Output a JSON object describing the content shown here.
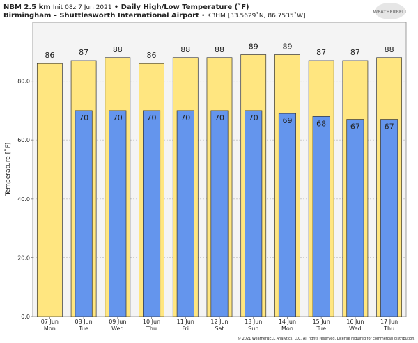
{
  "title_parts": [
    "NBM 2.5 km",
    "Init 08z 7 Jun 2021",
    "• Daily High/Low Temperature (˚F)"
  ],
  "subtitle_parts": [
    "Birmingham – Shuttlesworth International Airport",
    "• KBHM [33.5629˚N, 86.7535˚W]"
  ],
  "logo": "WEATHERBELL",
  "footer": "© 2021 WeatherBELL Analytics, LLC. All rights reserved. License required for commercial distribution.",
  "chart_data": {
    "type": "bar",
    "y_label": "Temperature [˚F]",
    "categories": [
      "07 Jun",
      "08 Jun",
      "09 Jun",
      "10 Jun",
      "11 Jun",
      "12 Jun",
      "13 Jun",
      "14 Jun",
      "15 Jun",
      "16 Jun",
      "17 Jun"
    ],
    "weekdays": [
      "Mon",
      "Tue",
      "Wed",
      "Thu",
      "Fri",
      "Sat",
      "Sun",
      "Mon",
      "Tue",
      "Wed",
      "Thu"
    ],
    "series": [
      {
        "name": "High",
        "color": "#ffe680",
        "values": [
          86,
          87,
          88,
          86,
          88,
          88,
          89,
          89,
          87,
          87,
          88
        ]
      },
      {
        "name": "Low",
        "color": "#6495ed",
        "values": [
          null,
          70,
          70,
          70,
          70,
          70,
          70,
          69,
          68,
          67,
          67
        ]
      }
    ],
    "ylim": [
      0,
      100
    ],
    "yticks": [
      {
        "value": 0,
        "label": "0.0"
      },
      {
        "value": 20,
        "label": "20.0"
      },
      {
        "value": 40,
        "label": "40.0"
      },
      {
        "value": 60,
        "label": "60.0"
      },
      {
        "value": 80,
        "label": "80.0"
      }
    ],
    "grid": true
  }
}
